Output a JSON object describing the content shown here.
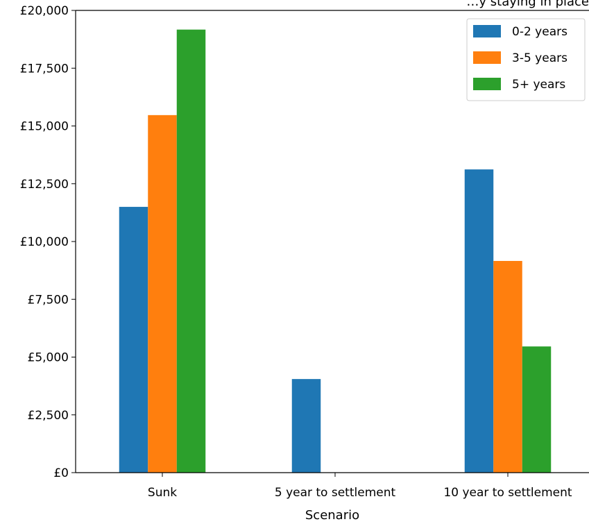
{
  "chart_data": {
    "type": "bar",
    "title": "…y staying in place",
    "xlabel": "Scenario",
    "ylabel": "",
    "categories": [
      "Sunk",
      "5 year to settlement",
      "10 year to settlement"
    ],
    "series": [
      {
        "name": "0-2 years",
        "color": "#1f77b4",
        "values": [
          11500,
          4050,
          13120
        ]
      },
      {
        "name": "3-5 years",
        "color": "#ff7f0e",
        "values": [
          15470,
          0,
          9160
        ]
      },
      {
        "name": "5+ years",
        "color": "#2ca02c",
        "values": [
          19170,
          0,
          5460
        ]
      }
    ],
    "ylim": [
      0,
      20000
    ],
    "yticks": [
      0,
      2500,
      5000,
      7500,
      10000,
      12500,
      15000,
      17500,
      20000
    ],
    "ytick_labels": [
      "£0",
      "£2,500",
      "£5,000",
      "£7,500",
      "£10,000",
      "£12,500",
      "£15,000",
      "£17,500",
      "£20,000"
    ],
    "grid": false,
    "legend_position": "top-right"
  }
}
